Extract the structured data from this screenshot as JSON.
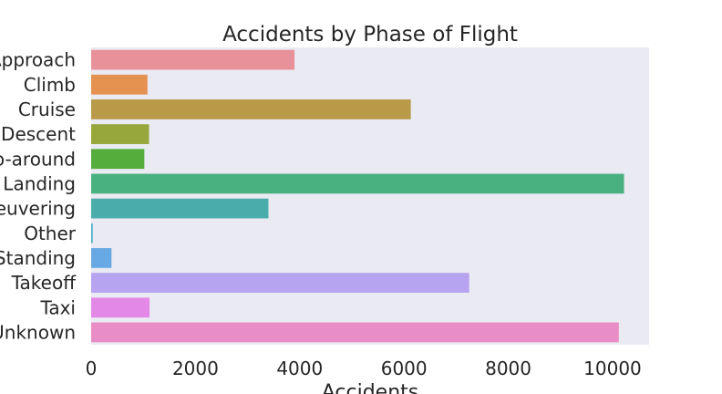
{
  "chart_data": {
    "type": "bar",
    "orientation": "horizontal",
    "title": "Accidents by Phase of Flight",
    "xlabel": "Accidents",
    "ylabel": "",
    "xlim": [
      0,
      10700
    ],
    "xticks": [
      0,
      2000,
      4000,
      6000,
      8000,
      10000
    ],
    "grid": false,
    "background": "#eaeaf2",
    "categories": [
      "Approach",
      "Climb",
      "Cruise",
      "Descent",
      "Go-around",
      "Landing",
      "Maneuvering",
      "Other",
      "Standing",
      "Takeoff",
      "Taxi",
      "Unknown"
    ],
    "values": [
      3900,
      1080,
      6130,
      1110,
      1020,
      10220,
      3400,
      30,
      390,
      7250,
      1120,
      10120
    ],
    "colors": [
      "#e8919b",
      "#e5914f",
      "#b89a48",
      "#97a73b",
      "#55ad3b",
      "#49b180",
      "#4aadab",
      "#4faec8",
      "#66a9e4",
      "#b6a4f0",
      "#e388e7",
      "#e98dc6"
    ]
  }
}
